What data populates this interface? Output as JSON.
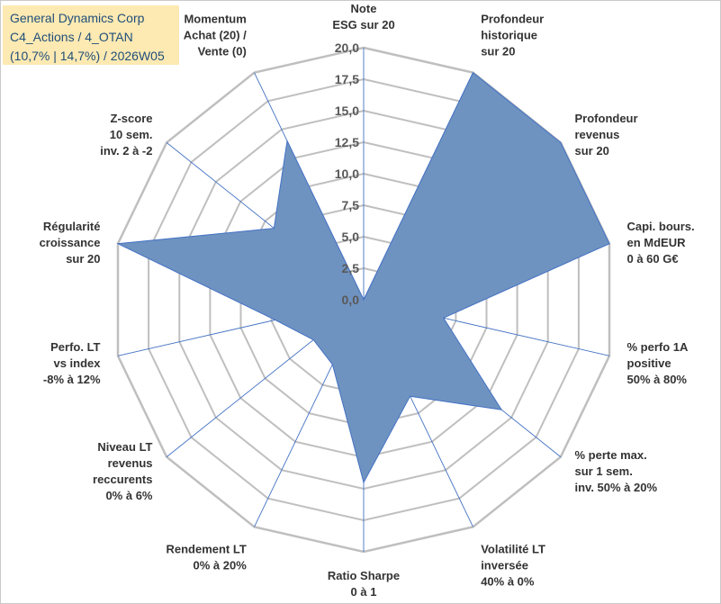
{
  "title": {
    "lines": [
      "General Dynamics Corp",
      "C4_Actions / 4_OTAN",
      "(10,7% | 14,7%) / 2026W05"
    ]
  },
  "colors": {
    "fill": "#6f93c0",
    "stroke": "#4472c4",
    "grid": "#bfbfbf",
    "title_bg": "#fde9b2",
    "title_text": "#1f4e79"
  },
  "chart_data": {
    "type": "radar",
    "rlim": [
      0,
      20
    ],
    "ticks": [
      "0,0",
      "2,5",
      "5,0",
      "7,5",
      "10,0",
      "12,5",
      "15,0",
      "17,5",
      "20,0"
    ],
    "axes": [
      {
        "label": [
          "Note",
          "ESG sur 20"
        ],
        "value": 0
      },
      {
        "label": [
          "Profondeur",
          "historique",
          "sur 20"
        ],
        "value": 20
      },
      {
        "label": [
          "Profondeur",
          "revenus",
          "sur 20"
        ],
        "value": 20
      },
      {
        "label": [
          "Capi. bours.",
          "en MdEUR",
          "0 à 60 G€"
        ],
        "value": 20
      },
      {
        "label": [
          "% perfo 1A",
          "positive",
          "50% à 80%"
        ],
        "value": 6.5
      },
      {
        "label": [
          "% perte max.",
          "sur 1 sem.",
          "inv. 50% à 20%"
        ],
        "value": 14
      },
      {
        "label": [
          "Volatilité LT",
          "inversée",
          "40% à 0%"
        ],
        "value": 8.5
      },
      {
        "label": [
          "Ratio Sharpe",
          "0 à 1"
        ],
        "value": 14.5
      },
      {
        "label": [
          "Rendement LT",
          "0% à 20%"
        ],
        "value": 5.7
      },
      {
        "label": [
          "Niveau LT",
          "revenus",
          "reccurents",
          "0% à 6%"
        ],
        "value": 5.1
      },
      {
        "label": [
          "Perfo. LT",
          "vs index",
          "-8% à 12%"
        ],
        "value": 7.2
      },
      {
        "label": [
          "Régularité",
          "croissance",
          "sur 20"
        ],
        "value": 20
      },
      {
        "label": [
          "Z-score",
          "10 sem.",
          "inv. 2 à -2"
        ],
        "value": 9.1
      },
      {
        "label": [
          "Momentum",
          "Achat (20) /",
          "Vente (0)"
        ],
        "value": 14
      }
    ]
  }
}
